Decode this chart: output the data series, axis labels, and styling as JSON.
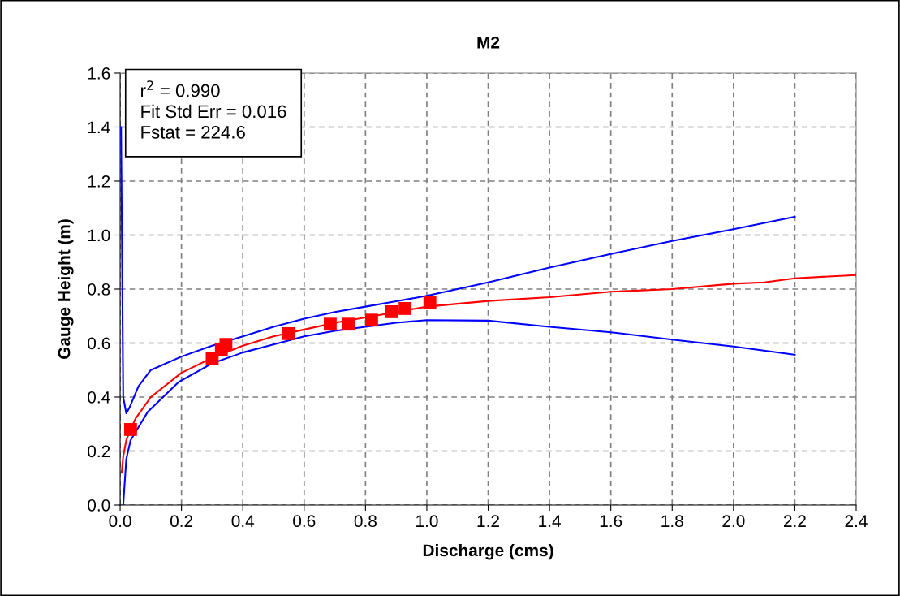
{
  "chart_data": {
    "type": "scatter",
    "title": "M2",
    "xlabel": "Discharge (cms)",
    "ylabel": "Gauge Height (m)",
    "xlim": [
      0,
      2.4
    ],
    "xticks": [
      {
        "value": 0,
        "label": "0.0"
      },
      0.2,
      0.4,
      0.6,
      0.8,
      {
        "value": 1,
        "label": "1.0"
      },
      1.2,
      1.4,
      1.6,
      1.8,
      {
        "value": 2,
        "label": "2.0"
      },
      2.2,
      2.4
    ],
    "ylim": [
      0,
      1.6
    ],
    "yticks": [
      {
        "value": 0,
        "label": "0.0"
      },
      0.2,
      0.4,
      0.6,
      0.8,
      {
        "value": 1,
        "label": "1.0"
      },
      1.2,
      1.4,
      1.6
    ],
    "grid": true,
    "legend": false,
    "annotations": [
      "r$^{2}$ = 0.990",
      "Fit Std Err = 0.016",
      "Fstat = 224.6"
    ],
    "series": [
      {
        "type": "line",
        "color": "#0000ff",
        "marker": "none",
        "x": [
          0.003,
          0.01,
          0.02,
          0.03,
          0.06,
          0.1,
          0.2,
          0.3,
          0.4,
          0.5,
          0.6,
          0.7,
          0.8,
          0.9,
          1.0,
          1.2,
          1.4,
          1.6,
          1.8,
          2.0,
          2.2
        ],
        "values": [
          1.4,
          0.4,
          0.34,
          0.36,
          0.44,
          0.5,
          0.55,
          0.59,
          0.625,
          0.66,
          0.69,
          0.715,
          0.735,
          0.755,
          0.775,
          0.825,
          0.88,
          0.93,
          0.978,
          1.022,
          1.068
        ]
      },
      {
        "type": "line",
        "color": "#0000ff",
        "marker": "none",
        "x": [
          0.01,
          0.02,
          0.034,
          0.09,
          0.19,
          0.3,
          0.4,
          0.5,
          0.6,
          0.7,
          0.8,
          0.9,
          1.0,
          1.2,
          1.4,
          1.6,
          1.8,
          2.0,
          2.2
        ],
        "values": [
          0.0,
          0.17,
          0.24,
          0.345,
          0.455,
          0.525,
          0.565,
          0.595,
          0.625,
          0.645,
          0.66,
          0.675,
          0.685,
          0.683,
          0.66,
          0.64,
          0.613,
          0.587,
          0.557
        ]
      },
      {
        "type": "line",
        "color": "#ff0000",
        "marker": "none",
        "x": [
          0.005,
          0.01,
          0.02,
          0.034,
          0.05,
          0.1,
          0.2,
          0.3,
          0.4,
          0.5,
          0.6,
          0.7,
          0.8,
          0.9,
          1.0,
          1.2,
          1.4,
          1.6,
          1.8,
          2.0,
          2.1,
          2.2,
          2.4
        ],
        "values": [
          0.12,
          0.18,
          0.24,
          0.28,
          0.32,
          0.4,
          0.49,
          0.545,
          0.59,
          0.625,
          0.65,
          0.675,
          0.695,
          0.715,
          0.735,
          0.756,
          0.77,
          0.79,
          0.8,
          0.82,
          0.825,
          0.84,
          0.852
        ]
      },
      {
        "color": "#ff0000",
        "marker": "square",
        "x": [
          0.034,
          0.3,
          0.33,
          0.345,
          0.55,
          0.685,
          0.744,
          0.82,
          0.884,
          0.929,
          1.01
        ],
        "values": [
          0.28,
          0.544,
          0.575,
          0.595,
          0.635,
          0.67,
          0.67,
          0.685,
          0.716,
          0.728,
          0.749
        ]
      }
    ]
  }
}
